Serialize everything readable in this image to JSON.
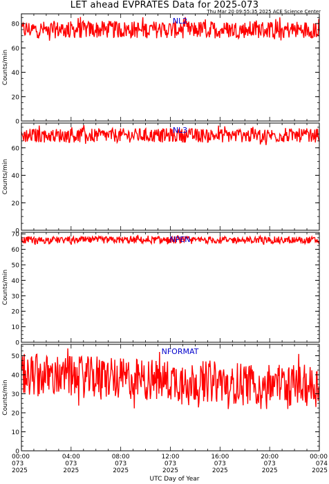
{
  "header": {
    "title": "LET ahead EVPRATES Data for 2025-073",
    "timestamp": "Thu Mar 20 09:55:35 2025 ACE Science Center"
  },
  "colors": {
    "series": "#ff0000",
    "panel_label": "#0000cc",
    "axes": "#000000"
  },
  "chart_data": [
    {
      "type": "line",
      "title": "NL2",
      "ylabel": "Counts/min",
      "ylim": [
        0,
        88
      ],
      "yticks": [
        0,
        20,
        40,
        60,
        80
      ],
      "xlim": [
        0,
        24
      ],
      "series": [
        {
          "mean": 75,
          "range": [
            66,
            88
          ]
        }
      ]
    },
    {
      "type": "line",
      "title": "NL3",
      "ylabel": "Counts/min",
      "ylim": [
        0,
        78
      ],
      "yticks": [
        0,
        20,
        40,
        60
      ],
      "xlim": [
        0,
        24
      ],
      "series": [
        {
          "mean": 69,
          "range": [
            62,
            78
          ]
        }
      ]
    },
    {
      "type": "line",
      "title": "NPEN",
      "ylabel": "Counts/min",
      "ylim": [
        0,
        71
      ],
      "yticks": [
        0,
        10,
        20,
        30,
        40,
        50,
        60,
        70
      ],
      "xlim": [
        0,
        24
      ],
      "series": [
        {
          "mean": 66,
          "range": [
            63,
            70
          ]
        }
      ]
    },
    {
      "type": "line",
      "title": "NFORMAT",
      "ylabel": "Counts/min",
      "ylim": [
        0,
        56
      ],
      "yticks": [
        0,
        10,
        20,
        30,
        40,
        50
      ],
      "xlim": [
        0,
        24
      ],
      "series": [
        {
          "mean_start": 40,
          "mean_end": 34,
          "range": [
            22,
            56
          ]
        }
      ]
    }
  ],
  "x_axis": {
    "label": "UTC Day of Year",
    "ticks": [
      {
        "value": 0,
        "time": "00:00",
        "doy": "073",
        "year": "2025"
      },
      {
        "value": 4,
        "time": "04:00",
        "doy": "073",
        "year": "2025"
      },
      {
        "value": 8,
        "time": "08:00",
        "doy": "073",
        "year": "2025"
      },
      {
        "value": 12,
        "time": "12:00",
        "doy": "073",
        "year": "2025"
      },
      {
        "value": 16,
        "time": "16:00",
        "doy": "073",
        "year": "2025"
      },
      {
        "value": 20,
        "time": "20:00",
        "doy": "073",
        "year": "2025"
      },
      {
        "value": 24,
        "time": "00:00",
        "doy": "074",
        "year": "2025"
      }
    ]
  }
}
